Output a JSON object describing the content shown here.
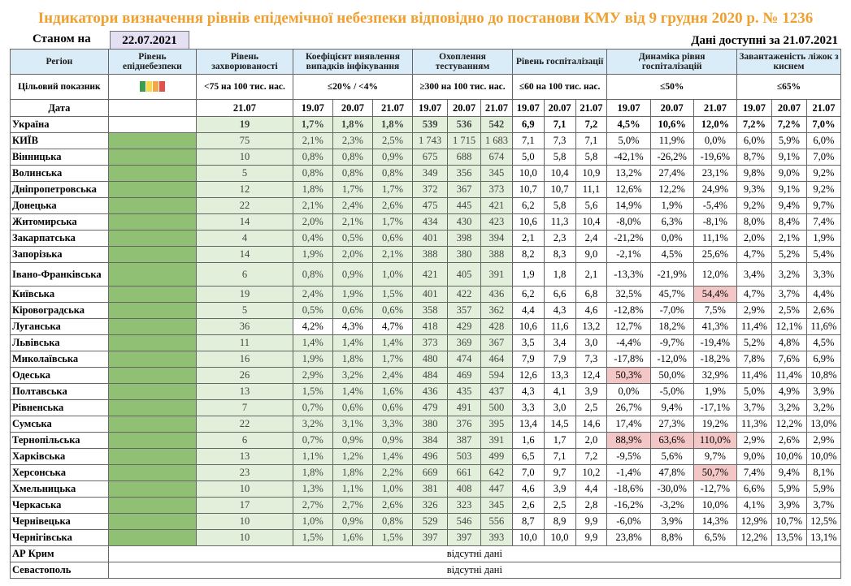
{
  "title": "Індикатори визначення рівнів епідемічної небезпеки відповідно до постанови КМУ від 9 грудня 2020 р. № 1236",
  "as_of_label": "Станом на",
  "as_of_date": "22.07.2021",
  "data_available": "Дані доступні за 21.07.2021",
  "headers": {
    "region": "Регіон",
    "danger_level": "Рівень епіднебезпеки",
    "morbidity": "Рівень захворюваності",
    "detection": "Коефіцієнт виявлення випадків інфікування",
    "testing": "Охоплення тестуванням",
    "hospitalization": "Рівень госпіталізації",
    "hosp_dynamics": "Динаміка рівня госпіталізацій",
    "oxygen": "Завантаженість ліжок з киснем"
  },
  "targets": {
    "label": "Цільовий показник",
    "morbidity": "<75 на 100 тис. нас.",
    "detection": "≤20% / <4%",
    "testing": "≥300 на 100 тис. нас.",
    "hospitalization": "≤60 на 100 тис. нас.",
    "hosp_dynamics": "≤50%",
    "oxygen": "≤65%"
  },
  "target_swatch_colors": [
    "#3a9e4a",
    "#f7d84b",
    "#f3a64a",
    "#e0504d"
  ],
  "dates": {
    "label": "Дата",
    "morbidity": "21.07",
    "triple": [
      "19.07",
      "20.07",
      "21.07"
    ]
  },
  "colors": {
    "title": "#f0a030",
    "level_green": "#8fc073",
    "light_green": "#e2efda",
    "highlight_pink": "#f4c7c7",
    "header_blue": "#d9ecf7"
  },
  "rows": [
    {
      "region": "Україна",
      "morb": "19",
      "det": [
        "1,7%",
        "1,8%",
        "1,8%"
      ],
      "test": [
        "539",
        "536",
        "542"
      ],
      "hosp": [
        "6,9",
        "7,1",
        "7,2"
      ],
      "dyn": [
        "4,5%",
        "10,6%",
        "12,0%"
      ],
      "oxy": [
        "7,2%",
        "7,2%",
        "7,0%"
      ]
    },
    {
      "region": "КИЇВ",
      "morb": "75",
      "det": [
        "2,1%",
        "2,3%",
        "2,5%"
      ],
      "test": [
        "1 743",
        "1 715",
        "1 683"
      ],
      "hosp": [
        "7,1",
        "7,3",
        "7,1"
      ],
      "dyn": [
        "5,0%",
        "11,9%",
        "0,0%"
      ],
      "oxy": [
        "6,0%",
        "5,9%",
        "6,0%"
      ]
    },
    {
      "region": "Вінницька",
      "morb": "10",
      "det": [
        "0,8%",
        "0,8%",
        "0,9%"
      ],
      "test": [
        "675",
        "688",
        "674"
      ],
      "hosp": [
        "5,0",
        "5,8",
        "5,8"
      ],
      "dyn": [
        "-42,1%",
        "-26,2%",
        "-19,6%"
      ],
      "oxy": [
        "8,7%",
        "9,1%",
        "7,0%"
      ]
    },
    {
      "region": "Волинська",
      "morb": "5",
      "det": [
        "0,8%",
        "0,8%",
        "0,8%"
      ],
      "test": [
        "349",
        "356",
        "345"
      ],
      "hosp": [
        "10,0",
        "10,4",
        "10,9"
      ],
      "dyn": [
        "13,2%",
        "27,4%",
        "23,1%"
      ],
      "oxy": [
        "9,8%",
        "9,0%",
        "9,2%"
      ]
    },
    {
      "region": "Дніпропетровська",
      "morb": "12",
      "det": [
        "1,8%",
        "1,7%",
        "1,7%"
      ],
      "test": [
        "372",
        "367",
        "373"
      ],
      "hosp": [
        "10,7",
        "10,7",
        "11,1"
      ],
      "dyn": [
        "12,6%",
        "12,2%",
        "24,9%"
      ],
      "oxy": [
        "9,3%",
        "9,1%",
        "9,2%"
      ]
    },
    {
      "region": "Донецька",
      "morb": "22",
      "det": [
        "2,1%",
        "2,4%",
        "2,6%"
      ],
      "test": [
        "475",
        "445",
        "421"
      ],
      "hosp": [
        "6,2",
        "5,8",
        "5,6"
      ],
      "dyn": [
        "14,9%",
        "1,9%",
        "-5,4%"
      ],
      "oxy": [
        "9,2%",
        "9,4%",
        "9,7%"
      ]
    },
    {
      "region": "Житомирська",
      "morb": "14",
      "det": [
        "2,0%",
        "2,1%",
        "1,7%"
      ],
      "test": [
        "434",
        "430",
        "423"
      ],
      "hosp": [
        "10,6",
        "11,3",
        "10,4"
      ],
      "dyn": [
        "-8,0%",
        "6,3%",
        "-8,1%"
      ],
      "oxy": [
        "8,0%",
        "8,4%",
        "7,4%"
      ]
    },
    {
      "region": "Закарпатська",
      "morb": "4",
      "det": [
        "0,4%",
        "0,5%",
        "0,6%"
      ],
      "test": [
        "401",
        "398",
        "394"
      ],
      "hosp": [
        "2,1",
        "2,3",
        "2,4"
      ],
      "dyn": [
        "-21,2%",
        "0,0%",
        "11,1%"
      ],
      "oxy": [
        "2,0%",
        "2,1%",
        "1,9%"
      ]
    },
    {
      "region": "Запорізька",
      "morb": "14",
      "det": [
        "1,9%",
        "2,0%",
        "2,1%"
      ],
      "test": [
        "388",
        "380",
        "388"
      ],
      "hosp": [
        "8,2",
        "8,3",
        "9,0"
      ],
      "dyn": [
        "-2,1%",
        "4,5%",
        "25,6%"
      ],
      "oxy": [
        "4,7%",
        "5,2%",
        "5,4%"
      ]
    },
    {
      "region": "Івано-Франківська",
      "morb": "6",
      "det": [
        "0,8%",
        "0,9%",
        "1,0%"
      ],
      "test": [
        "421",
        "405",
        "391"
      ],
      "hosp": [
        "1,9",
        "1,8",
        "2,1"
      ],
      "dyn": [
        "-13,3%",
        "-21,9%",
        "12,0%"
      ],
      "oxy": [
        "3,4%",
        "3,2%",
        "3,3%"
      ]
    },
    {
      "region": "Київська",
      "morb": "19",
      "det": [
        "2,4%",
        "1,9%",
        "1,5%"
      ],
      "test": [
        "401",
        "422",
        "436"
      ],
      "hosp": [
        "6,2",
        "6,6",
        "6,8"
      ],
      "dyn": [
        "32,5%",
        "45,7%",
        "54,4%"
      ],
      "oxy": [
        "4,7%",
        "3,7%",
        "4,4%"
      ]
    },
    {
      "region": "Кіровоградська",
      "morb": "5",
      "det": [
        "0,5%",
        "0,6%",
        "0,6%"
      ],
      "test": [
        "358",
        "357",
        "362"
      ],
      "hosp": [
        "4,4",
        "4,3",
        "4,6"
      ],
      "dyn": [
        "-12,8%",
        "-7,0%",
        "7,5%"
      ],
      "oxy": [
        "2,9%",
        "2,5%",
        "2,6%"
      ]
    },
    {
      "region": "Луганська",
      "morb": "36",
      "det": [
        "4,2%",
        "4,3%",
        "4,7%"
      ],
      "test": [
        "418",
        "429",
        "428"
      ],
      "hosp": [
        "10,6",
        "11,6",
        "13,2"
      ],
      "dyn": [
        "12,7%",
        "18,2%",
        "41,3%"
      ],
      "oxy": [
        "11,4%",
        "12,1%",
        "11,6%"
      ]
    },
    {
      "region": "Львівська",
      "morb": "11",
      "det": [
        "1,4%",
        "1,4%",
        "1,4%"
      ],
      "test": [
        "373",
        "369",
        "367"
      ],
      "hosp": [
        "3,5",
        "3,4",
        "3,0"
      ],
      "dyn": [
        "-4,4%",
        "-9,7%",
        "-19,4%"
      ],
      "oxy": [
        "5,2%",
        "4,8%",
        "4,5%"
      ]
    },
    {
      "region": "Миколаївська",
      "morb": "16",
      "det": [
        "1,9%",
        "1,8%",
        "1,7%"
      ],
      "test": [
        "480",
        "474",
        "464"
      ],
      "hosp": [
        "7,9",
        "7,9",
        "7,3"
      ],
      "dyn": [
        "-17,8%",
        "-12,0%",
        "-18,2%"
      ],
      "oxy": [
        "7,8%",
        "7,6%",
        "6,9%"
      ]
    },
    {
      "region": "Одеська",
      "morb": "26",
      "det": [
        "2,9%",
        "3,2%",
        "2,4%"
      ],
      "test": [
        "484",
        "469",
        "594"
      ],
      "hosp": [
        "12,6",
        "13,3",
        "12,4"
      ],
      "dyn": [
        "50,3%",
        "50,0%",
        "32,9%"
      ],
      "oxy": [
        "11,4%",
        "11,4%",
        "10,8%"
      ]
    },
    {
      "region": "Полтавська",
      "morb": "13",
      "det": [
        "1,5%",
        "1,4%",
        "1,6%"
      ],
      "test": [
        "436",
        "435",
        "437"
      ],
      "hosp": [
        "4,3",
        "4,1",
        "3,9"
      ],
      "dyn": [
        "0,0%",
        "-5,0%",
        "1,9%"
      ],
      "oxy": [
        "5,0%",
        "4,9%",
        "3,9%"
      ]
    },
    {
      "region": "Рівненська",
      "morb": "7",
      "det": [
        "0,7%",
        "0,6%",
        "0,6%"
      ],
      "test": [
        "479",
        "491",
        "500"
      ],
      "hosp": [
        "3,3",
        "3,0",
        "2,5"
      ],
      "dyn": [
        "26,7%",
        "9,4%",
        "-17,1%"
      ],
      "oxy": [
        "3,7%",
        "3,2%",
        "3,2%"
      ]
    },
    {
      "region": "Сумська",
      "morb": "22",
      "det": [
        "3,2%",
        "3,1%",
        "3,3%"
      ],
      "test": [
        "380",
        "376",
        "395"
      ],
      "hosp": [
        "13,4",
        "14,5",
        "14,6"
      ],
      "dyn": [
        "17,4%",
        "27,3%",
        "19,2%"
      ],
      "oxy": [
        "11,3%",
        "12,2%",
        "13,0%"
      ]
    },
    {
      "region": "Тернопільська",
      "morb": "6",
      "det": [
        "0,7%",
        "0,9%",
        "0,9%"
      ],
      "test": [
        "384",
        "387",
        "391"
      ],
      "hosp": [
        "1,6",
        "1,7",
        "2,0"
      ],
      "dyn": [
        "88,9%",
        "63,6%",
        "110,0%"
      ],
      "oxy": [
        "2,9%",
        "2,6%",
        "2,9%"
      ]
    },
    {
      "region": "Харківська",
      "morb": "13",
      "det": [
        "1,1%",
        "1,2%",
        "1,4%"
      ],
      "test": [
        "496",
        "503",
        "499"
      ],
      "hosp": [
        "6,5",
        "7,1",
        "7,2"
      ],
      "dyn": [
        "-9,5%",
        "5,6%",
        "9,7%"
      ],
      "oxy": [
        "9,0%",
        "10,0%",
        "10,0%"
      ]
    },
    {
      "region": "Херсонська",
      "morb": "23",
      "det": [
        "1,8%",
        "1,8%",
        "2,2%"
      ],
      "test": [
        "669",
        "661",
        "642"
      ],
      "hosp": [
        "7,0",
        "9,7",
        "10,2"
      ],
      "dyn": [
        "-1,4%",
        "47,8%",
        "50,7%"
      ],
      "oxy": [
        "7,4%",
        "9,4%",
        "8,1%"
      ]
    },
    {
      "region": "Хмельницька",
      "morb": "10",
      "det": [
        "1,3%",
        "1,1%",
        "1,0%"
      ],
      "test": [
        "381",
        "408",
        "447"
      ],
      "hosp": [
        "4,6",
        "3,9",
        "4,4"
      ],
      "dyn": [
        "-18,6%",
        "-30,0%",
        "-12,7%"
      ],
      "oxy": [
        "6,6%",
        "5,9%",
        "5,9%"
      ]
    },
    {
      "region": "Черкаська",
      "morb": "17",
      "det": [
        "2,7%",
        "2,7%",
        "2,6%"
      ],
      "test": [
        "326",
        "323",
        "345"
      ],
      "hosp": [
        "2,6",
        "2,5",
        "2,8"
      ],
      "dyn": [
        "-16,2%",
        "-3,2%",
        "10,0%"
      ],
      "oxy": [
        "4,1%",
        "3,9%",
        "3,7%"
      ]
    },
    {
      "region": "Чернівецька",
      "morb": "10",
      "det": [
        "1,0%",
        "0,9%",
        "0,8%"
      ],
      "test": [
        "529",
        "546",
        "556"
      ],
      "hosp": [
        "8,7",
        "8,9",
        "9,9"
      ],
      "dyn": [
        "-6,0%",
        "3,9%",
        "14,3%"
      ],
      "oxy": [
        "12,9%",
        "10,7%",
        "12,5%"
      ]
    },
    {
      "region": "Чернігівська",
      "morb": "10",
      "det": [
        "1,5%",
        "1,6%",
        "1,5%"
      ],
      "test": [
        "397",
        "397",
        "393"
      ],
      "hosp": [
        "10,0",
        "10,0",
        "9,9"
      ],
      "dyn": [
        "23,8%",
        "8,8%",
        "6,5%"
      ],
      "oxy": [
        "12,2%",
        "13,5%",
        "13,1%"
      ]
    }
  ],
  "missing": [
    {
      "region": "АР Крим",
      "text": "відсутні дані"
    },
    {
      "region": "Севастополь",
      "text": "відсутні дані"
    }
  ]
}
